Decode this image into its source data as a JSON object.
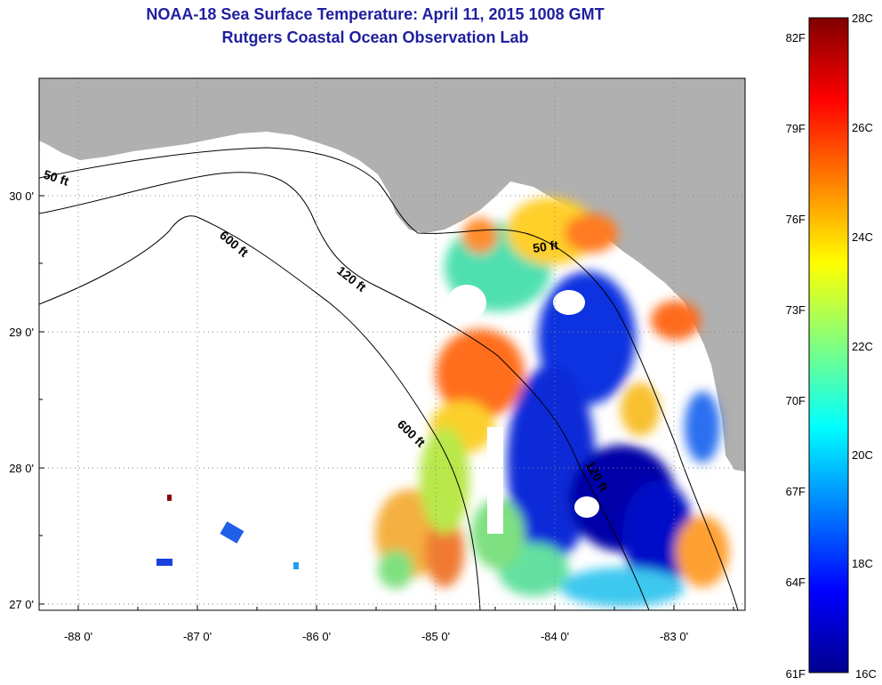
{
  "header": {
    "title": "NOAA-18 Sea Surface Temperature:  April 11, 2015 1008 GMT",
    "subtitle": "Rutgers Coastal Ocean Observation Lab"
  },
  "axes": {
    "x_ticks": [
      "-88 0'",
      "-87 0'",
      "-86 0'",
      "-85 0'",
      "-84 0'",
      "-83 0'"
    ],
    "y_ticks": [
      "30 0'",
      "29 0'",
      "28 0'",
      "27 0'"
    ]
  },
  "contours": {
    "label_50": "50 ft",
    "label_120": "120 ft",
    "label_600": "600 ft"
  },
  "colorbar": {
    "celsius": [
      "28C",
      "26C",
      "24C",
      "22C",
      "20C",
      "18C",
      "16C"
    ],
    "fahrenheit": [
      "82F",
      "79F",
      "76F",
      "73F",
      "70F",
      "67F",
      "64F",
      "61F"
    ]
  },
  "colors": {
    "land": "#b0b0b0",
    "nodata": "#ffffff",
    "title": "#1f1fa0"
  }
}
